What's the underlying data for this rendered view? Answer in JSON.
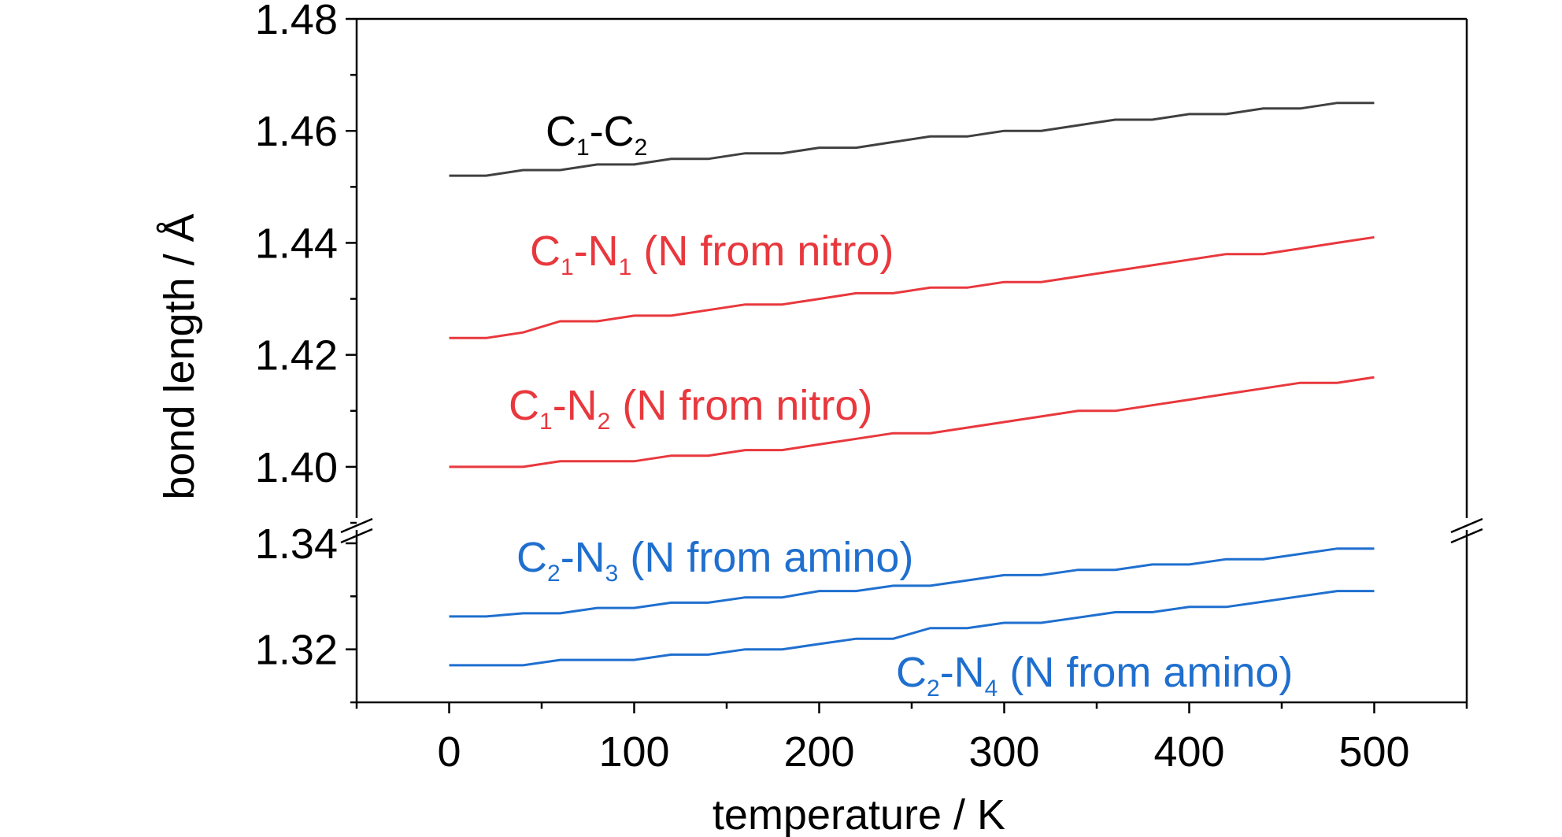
{
  "chart_data": {
    "type": "line",
    "xlabel": "temperature / K",
    "ylabel": "bond length / Å",
    "xlim": [
      -50,
      550
    ],
    "x_ticks": [
      "0",
      "100",
      "200",
      "300",
      "400",
      "500"
    ],
    "y_axis_break": true,
    "y_upper_range": [
      1.39,
      1.48
    ],
    "y_lower_range": [
      1.31,
      1.34
    ],
    "y_ticks": [
      "1.48",
      "1.46",
      "1.44",
      "1.42",
      "1.40",
      "1.34",
      "1.32"
    ],
    "x": [
      0,
      20,
      40,
      60,
      80,
      100,
      120,
      140,
      160,
      180,
      200,
      220,
      240,
      260,
      280,
      300,
      320,
      340,
      360,
      380,
      400,
      420,
      440,
      460,
      480,
      500
    ],
    "series": [
      {
        "name_main": "C",
        "name_sub1": "1",
        "name_mid": "-C",
        "name_sub2": "2",
        "name_tail": "",
        "color": "#404040",
        "values": [
          1.452,
          1.452,
          1.453,
          1.453,
          1.454,
          1.454,
          1.455,
          1.455,
          1.456,
          1.456,
          1.457,
          1.457,
          1.458,
          1.459,
          1.459,
          1.46,
          1.46,
          1.461,
          1.462,
          1.462,
          1.463,
          1.463,
          1.464,
          1.464,
          1.465,
          1.465
        ]
      },
      {
        "name_main": "C",
        "name_sub1": "1",
        "name_mid": "-N",
        "name_sub2": "1",
        "name_tail": " (N from nitro)",
        "color": "#e8383d",
        "values": [
          1.423,
          1.423,
          1.424,
          1.426,
          1.426,
          1.427,
          1.427,
          1.428,
          1.429,
          1.429,
          1.43,
          1.431,
          1.431,
          1.432,
          1.432,
          1.433,
          1.433,
          1.434,
          1.435,
          1.436,
          1.437,
          1.438,
          1.438,
          1.439,
          1.44,
          1.441
        ]
      },
      {
        "name_main": "C",
        "name_sub1": "1",
        "name_mid": "-N",
        "name_sub2": "2",
        "name_tail": " (N from nitro)",
        "color": "#e8383d",
        "values": [
          1.4,
          1.4,
          1.4,
          1.401,
          1.401,
          1.401,
          1.402,
          1.402,
          1.403,
          1.403,
          1.404,
          1.405,
          1.406,
          1.406,
          1.407,
          1.408,
          1.409,
          1.41,
          1.41,
          1.411,
          1.412,
          1.413,
          1.414,
          1.415,
          1.415,
          1.416
        ]
      },
      {
        "name_main": "C",
        "name_sub1": "2",
        "name_mid": "-N",
        "name_sub2": "3",
        "name_tail": " (N from amino)",
        "color": "#1f6fcf",
        "values": [
          1.3262,
          1.3262,
          1.3268,
          1.3268,
          1.3278,
          1.3278,
          1.3288,
          1.3288,
          1.3298,
          1.3298,
          1.331,
          1.331,
          1.332,
          1.332,
          1.333,
          1.334,
          1.334,
          1.335,
          1.335,
          1.336,
          1.336,
          1.337,
          1.337,
          1.338,
          1.339,
          1.339
        ]
      },
      {
        "name_main": "C",
        "name_sub1": "2",
        "name_mid": "-N",
        "name_sub2": "4",
        "name_tail": " (N from amino)",
        "color": "#1f6fcf",
        "values": [
          1.317,
          1.317,
          1.317,
          1.318,
          1.318,
          1.318,
          1.319,
          1.319,
          1.32,
          1.32,
          1.321,
          1.322,
          1.322,
          1.324,
          1.324,
          1.325,
          1.325,
          1.326,
          1.327,
          1.327,
          1.328,
          1.328,
          1.329,
          1.33,
          1.331,
          1.331
        ]
      }
    ]
  }
}
